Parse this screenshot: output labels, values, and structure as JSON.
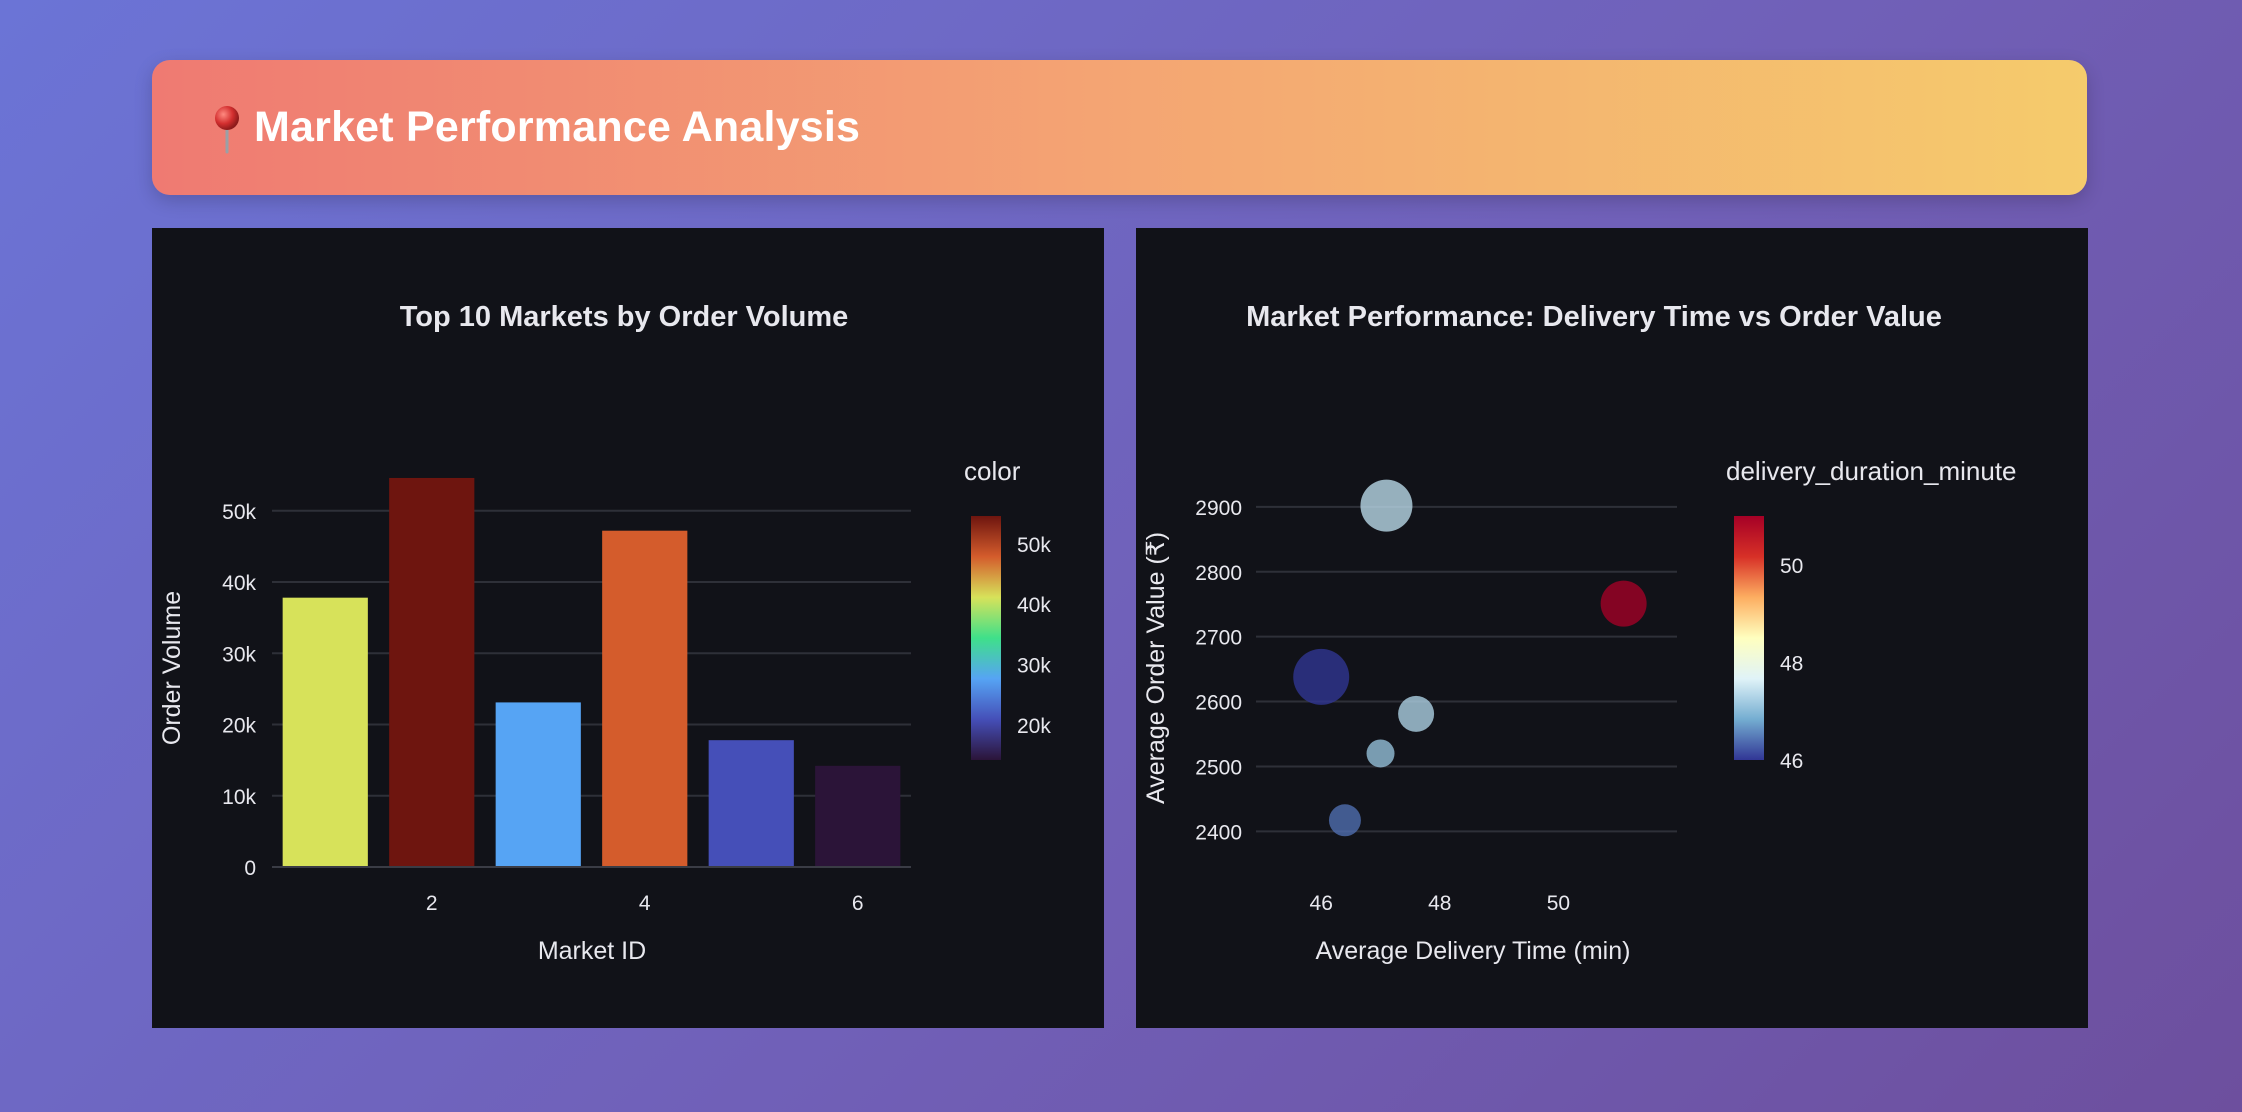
{
  "header": {
    "title": "Market Performance Analysis",
    "icon": "pin-icon",
    "gradient": [
      "#ef7a72",
      "#f5cb6c"
    ]
  },
  "chart_data": [
    {
      "type": "bar",
      "title": "Top 10 Markets by Order Volume",
      "xlabel": "Market ID",
      "ylabel": "Order Volume",
      "x": [
        1,
        2,
        3,
        4,
        5,
        6
      ],
      "values": [
        37800,
        54600,
        23100,
        47200,
        17800,
        14200
      ],
      "colors": [
        "#d7e25a",
        "#6e150f",
        "#56a4f4",
        "#d45c2c",
        "#454fb8",
        "#2b1438"
      ],
      "xlim": [
        0.5,
        6.5
      ],
      "ylim": [
        0,
        56000
      ],
      "xticks": [
        2,
        4,
        6
      ],
      "xtick_labels": [
        "2",
        "4",
        "6"
      ],
      "yticks": [
        0,
        10000,
        20000,
        30000,
        40000,
        50000
      ],
      "ytick_labels": [
        "0",
        "10k",
        "20k",
        "30k",
        "40k",
        "50k"
      ],
      "grid": true,
      "colorbar": {
        "title": "color",
        "range": [
          14200,
          54600
        ],
        "ticks": [
          20000,
          30000,
          40000,
          50000
        ],
        "tick_labels": [
          "20k",
          "30k",
          "40k",
          "50k"
        ],
        "colorscale": [
          "#2b1438",
          "#454fb8",
          "#56a4f4",
          "#3fe08a",
          "#d7e25a",
          "#d45c2c",
          "#6e150f"
        ]
      }
    },
    {
      "type": "scatter",
      "title": "Market Performance: Delivery Time vs Order Value",
      "xlabel": "Average Delivery Time (min)",
      "ylabel": "Average Order Value (₹)",
      "points": [
        {
          "x": 47.1,
          "y": 2902,
          "size": 26,
          "color_value": 47.4
        },
        {
          "x": 51.1,
          "y": 2751,
          "size": 23,
          "color_value": 51.0
        },
        {
          "x": 46.0,
          "y": 2638,
          "size": 28,
          "color_value": 46.0
        },
        {
          "x": 47.6,
          "y": 2581,
          "size": 18,
          "color_value": 47.3
        },
        {
          "x": 47.0,
          "y": 2520,
          "size": 14,
          "color_value": 47.1
        },
        {
          "x": 46.4,
          "y": 2417,
          "size": 16,
          "color_value": 46.4
        }
      ],
      "xlim": [
        44.9,
        52.0
      ],
      "ylim": [
        2345,
        2960
      ],
      "xticks": [
        46,
        48,
        50
      ],
      "xtick_labels": [
        "46",
        "48",
        "50"
      ],
      "yticks": [
        2400,
        2500,
        2600,
        2700,
        2800,
        2900
      ],
      "ytick_labels": [
        "2400",
        "2500",
        "2600",
        "2700",
        "2800",
        "2900"
      ],
      "grid": true,
      "colorbar": {
        "title": "delivery_duration_minute",
        "range": [
          46.0,
          51.0
        ],
        "ticks": [
          46,
          48,
          50
        ],
        "tick_labels": [
          "46",
          "48",
          "50"
        ],
        "colorscale": [
          "#313695",
          "#74add1",
          "#e0f3f8",
          "#ffffbf",
          "#fdae61",
          "#d73027",
          "#a50026"
        ]
      }
    }
  ]
}
